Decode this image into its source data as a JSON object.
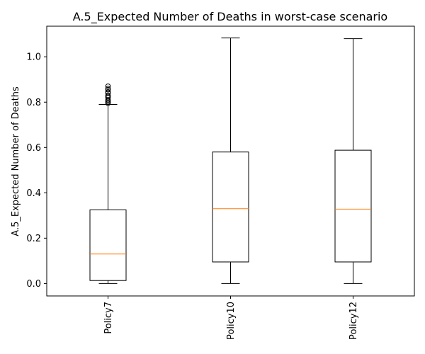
{
  "chart_data": {
    "type": "box",
    "title": "A.5_Expected Number of Deaths in worst-case scenario",
    "xlabel": "",
    "ylabel": "A.5_Expected Number of Deaths",
    "ylim": [
      -0.055,
      1.135
    ],
    "yticks": [
      0.0,
      0.2,
      0.4,
      0.6,
      0.8,
      1.0
    ],
    "ytick_labels": [
      "0.0",
      "0.2",
      "0.4",
      "0.6",
      "0.8",
      "1.0"
    ],
    "categories": [
      "Policy7",
      "Policy10",
      "Policy12"
    ],
    "grid": false,
    "boxes": [
      {
        "name": "Policy7",
        "whisker_low": 0.0,
        "q1": 0.013,
        "median": 0.13,
        "q3": 0.325,
        "whisker_high": 0.79,
        "outliers": [
          0.795,
          0.8,
          0.805,
          0.81,
          0.82,
          0.825,
          0.83,
          0.84,
          0.845,
          0.855,
          0.86,
          0.87
        ]
      },
      {
        "name": "Policy10",
        "whisker_low": 0.0,
        "q1": 0.095,
        "median": 0.33,
        "q3": 0.58,
        "whisker_high": 1.083,
        "outliers": []
      },
      {
        "name": "Policy12",
        "whisker_low": 0.0,
        "q1": 0.095,
        "median": 0.328,
        "q3": 0.588,
        "whisker_high": 1.08,
        "outliers": []
      }
    ],
    "colors": {
      "box": "#000000",
      "median": "#ff7f0e",
      "outlier": "#000000"
    }
  }
}
